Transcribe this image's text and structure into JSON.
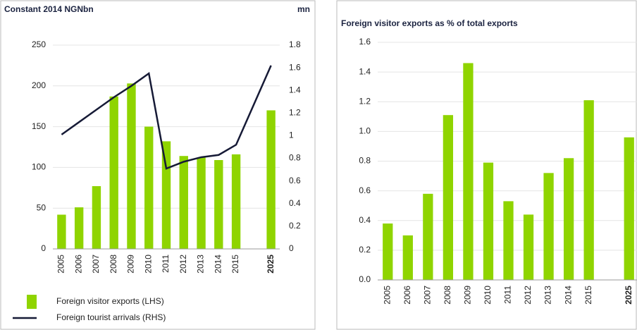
{
  "chart_data": [
    {
      "type": "bar",
      "title": "Constant 2014 NGNbn",
      "y2_label": "mn",
      "categories": [
        "2005",
        "2006",
        "2007",
        "2008",
        "2009",
        "2010",
        "2011",
        "2012",
        "2013",
        "2014",
        "2015",
        "2025"
      ],
      "series": [
        {
          "name": "Foreign visitor exports (LHS)",
          "color": "#8fd400",
          "values": [
            42,
            51,
            77,
            187,
            203,
            150,
            132,
            114,
            112,
            109,
            116,
            170
          ]
        },
        {
          "name": "Foreign tourist arrivals (RHS)",
          "type": "line",
          "axis": "y2",
          "color": "#161a36",
          "values": [
            1.01,
            1.12,
            1.23,
            1.34,
            1.44,
            1.55,
            0.71,
            0.77,
            0.81,
            0.83,
            0.92,
            1.62
          ]
        }
      ],
      "ylim": [
        0,
        250
      ],
      "yticks": [
        0,
        50,
        100,
        150,
        200,
        250
      ],
      "y2lim": [
        0,
        1.8
      ],
      "y2ticks": [
        0,
        0.2,
        0.4,
        0.6,
        0.8,
        1,
        1.2,
        1.4,
        1.6,
        1.8
      ],
      "grid": true
    },
    {
      "type": "bar",
      "title": "Foreign visitor exports as % of total exports",
      "categories": [
        "2005",
        "2006",
        "2007",
        "2008",
        "2009",
        "2010",
        "2011",
        "2012",
        "2013",
        "2014",
        "2015",
        "2025"
      ],
      "values": [
        0.38,
        0.3,
        0.58,
        1.11,
        1.46,
        0.79,
        0.53,
        0.44,
        0.72,
        0.82,
        1.21,
        0.96
      ],
      "color": "#8fd400",
      "ylim": [
        0,
        1.6
      ],
      "yticks": [
        {
          "value": 0,
          "label": "0.0"
        },
        0.2,
        0.4,
        0.6,
        0.8,
        {
          "value": 1,
          "label": "1.0"
        },
        1.2,
        1.4,
        1.6
      ],
      "grid": true
    }
  ]
}
